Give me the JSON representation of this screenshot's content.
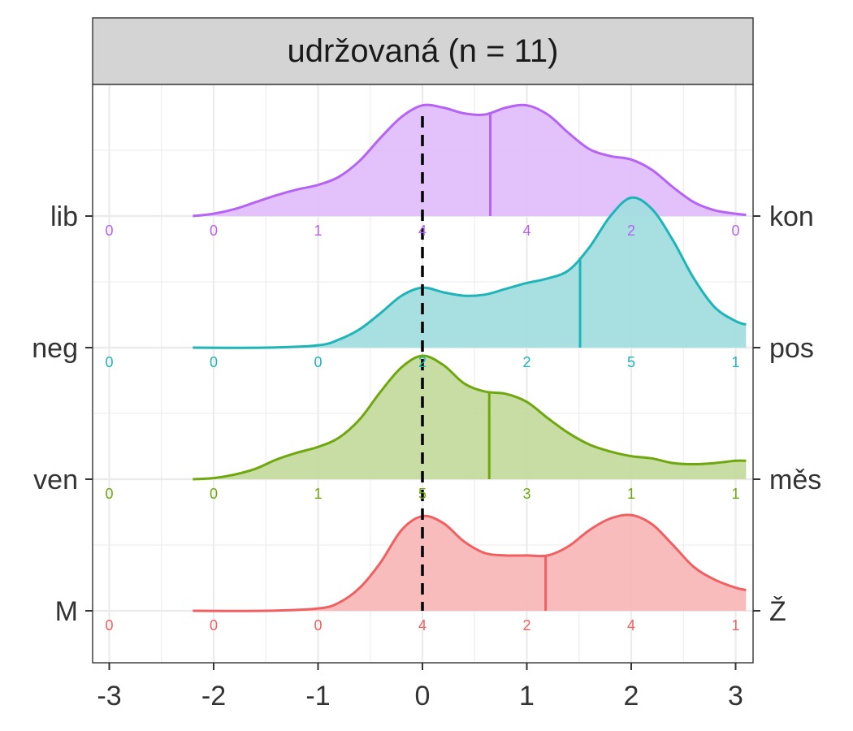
{
  "chart_data": {
    "type": "ridgeline",
    "title": "udržovaná (n = 11)",
    "xlabel": "",
    "ylabel": "",
    "x_ticks": [
      -3,
      -2,
      -1,
      0,
      1,
      2,
      3
    ],
    "x_tick_labels": [
      "-3",
      "-2",
      "-1",
      "0",
      "1",
      "2",
      "3"
    ],
    "xlim": [
      -3.15,
      3.15
    ],
    "reference_line_x": 0,
    "grid": true,
    "series": [
      {
        "left_label": "M",
        "right_label": "Ž",
        "color": "#F06060",
        "fill": "#F8B8B8",
        "median": 1.18,
        "counts": [
          "0",
          "0",
          "0",
          "4",
          "2",
          "4",
          "1"
        ],
        "density": [
          [
            -2.2,
            0.0
          ],
          [
            -1.5,
            0.0
          ],
          [
            -1.0,
            0.02
          ],
          [
            -0.8,
            0.07
          ],
          [
            -0.6,
            0.2
          ],
          [
            -0.4,
            0.42
          ],
          [
            -0.2,
            0.7
          ],
          [
            0.0,
            0.82
          ],
          [
            0.2,
            0.76
          ],
          [
            0.4,
            0.6
          ],
          [
            0.6,
            0.5
          ],
          [
            0.8,
            0.48
          ],
          [
            1.0,
            0.48
          ],
          [
            1.2,
            0.48
          ],
          [
            1.4,
            0.56
          ],
          [
            1.6,
            0.7
          ],
          [
            1.8,
            0.8
          ],
          [
            2.0,
            0.83
          ],
          [
            2.2,
            0.75
          ],
          [
            2.4,
            0.57
          ],
          [
            2.6,
            0.38
          ],
          [
            2.8,
            0.27
          ],
          [
            3.0,
            0.2
          ],
          [
            3.1,
            0.18
          ]
        ]
      },
      {
        "left_label": "ven",
        "right_label": "měs",
        "color": "#6FA80E",
        "fill": "#C4DB9F",
        "median": 0.64,
        "counts": [
          "0",
          "0",
          "1",
          "5",
          "3",
          "1",
          "1"
        ],
        "density": [
          [
            -2.2,
            0.0
          ],
          [
            -2.0,
            0.01
          ],
          [
            -1.8,
            0.04
          ],
          [
            -1.6,
            0.09
          ],
          [
            -1.4,
            0.17
          ],
          [
            -1.2,
            0.23
          ],
          [
            -1.0,
            0.28
          ],
          [
            -0.8,
            0.36
          ],
          [
            -0.6,
            0.52
          ],
          [
            -0.4,
            0.76
          ],
          [
            -0.2,
            0.97
          ],
          [
            0.0,
            1.07
          ],
          [
            0.2,
            0.99
          ],
          [
            0.4,
            0.83
          ],
          [
            0.6,
            0.76
          ],
          [
            0.8,
            0.74
          ],
          [
            1.0,
            0.67
          ],
          [
            1.2,
            0.53
          ],
          [
            1.4,
            0.4
          ],
          [
            1.6,
            0.3
          ],
          [
            1.8,
            0.24
          ],
          [
            2.0,
            0.2
          ],
          [
            2.2,
            0.18
          ],
          [
            2.4,
            0.14
          ],
          [
            2.6,
            0.13
          ],
          [
            2.8,
            0.14
          ],
          [
            3.0,
            0.16
          ],
          [
            3.1,
            0.16
          ]
        ]
      },
      {
        "left_label": "neg",
        "right_label": "pos",
        "color": "#1EB4B8",
        "fill": "#A3DEE0",
        "median": 1.51,
        "counts": [
          "0",
          "0",
          "0",
          "2",
          "2",
          "5",
          "1"
        ],
        "density": [
          [
            -2.2,
            0.0
          ],
          [
            -1.5,
            0.0
          ],
          [
            -1.0,
            0.02
          ],
          [
            -0.8,
            0.07
          ],
          [
            -0.6,
            0.16
          ],
          [
            -0.4,
            0.3
          ],
          [
            -0.2,
            0.45
          ],
          [
            0.0,
            0.52
          ],
          [
            0.2,
            0.48
          ],
          [
            0.4,
            0.45
          ],
          [
            0.6,
            0.46
          ],
          [
            0.8,
            0.51
          ],
          [
            1.0,
            0.56
          ],
          [
            1.2,
            0.6
          ],
          [
            1.4,
            0.67
          ],
          [
            1.6,
            0.87
          ],
          [
            1.8,
            1.14
          ],
          [
            2.0,
            1.3
          ],
          [
            2.2,
            1.2
          ],
          [
            2.4,
            0.93
          ],
          [
            2.6,
            0.6
          ],
          [
            2.8,
            0.35
          ],
          [
            3.0,
            0.23
          ],
          [
            3.1,
            0.2
          ]
        ]
      },
      {
        "left_label": "lib",
        "right_label": "kon",
        "color": "#B563F5",
        "fill": "#E1BEFB",
        "median": 0.65,
        "counts": [
          "0",
          "0",
          "1",
          "4",
          "4",
          "2",
          "0"
        ],
        "density": [
          [
            -2.2,
            0.0
          ],
          [
            -2.0,
            0.02
          ],
          [
            -1.8,
            0.06
          ],
          [
            -1.6,
            0.12
          ],
          [
            -1.4,
            0.18
          ],
          [
            -1.2,
            0.23
          ],
          [
            -1.0,
            0.27
          ],
          [
            -0.8,
            0.34
          ],
          [
            -0.6,
            0.48
          ],
          [
            -0.4,
            0.68
          ],
          [
            -0.2,
            0.86
          ],
          [
            0.0,
            0.96
          ],
          [
            0.2,
            0.94
          ],
          [
            0.4,
            0.89
          ],
          [
            0.6,
            0.88
          ],
          [
            0.8,
            0.94
          ],
          [
            1.0,
            0.96
          ],
          [
            1.2,
            0.88
          ],
          [
            1.4,
            0.72
          ],
          [
            1.6,
            0.58
          ],
          [
            1.8,
            0.52
          ],
          [
            2.0,
            0.49
          ],
          [
            2.2,
            0.4
          ],
          [
            2.4,
            0.25
          ],
          [
            2.6,
            0.12
          ],
          [
            2.8,
            0.05
          ],
          [
            3.0,
            0.02
          ],
          [
            3.1,
            0.01
          ]
        ]
      }
    ]
  }
}
